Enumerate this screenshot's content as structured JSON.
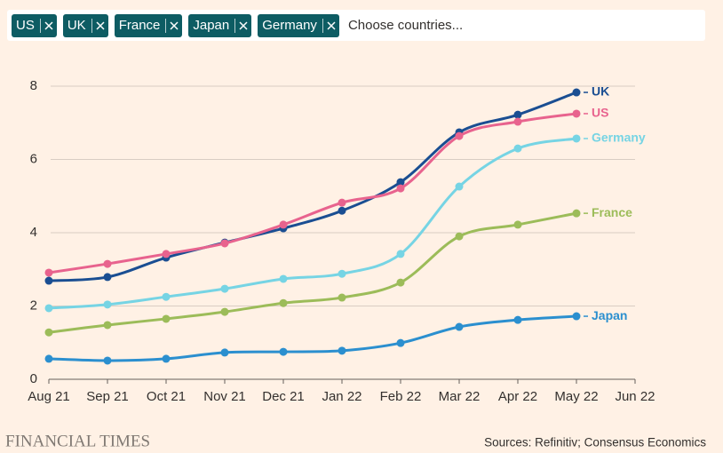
{
  "filter": {
    "chips": [
      "US",
      "UK",
      "France",
      "Japan",
      "Germany"
    ],
    "placeholder": "Choose countries..."
  },
  "chart_data": {
    "type": "line",
    "categories": [
      "Aug 21",
      "Sep 21",
      "Oct 21",
      "Nov 21",
      "Dec 21",
      "Jan 22",
      "Feb 22",
      "Mar 22",
      "Apr 22",
      "May 22",
      "Jun 22"
    ],
    "series": [
      {
        "name": "UK",
        "color": "#1a4e92",
        "values": [
          2.69,
          2.79,
          3.32,
          3.73,
          4.12,
          4.6,
          5.38,
          6.74,
          7.22,
          7.83,
          null
        ]
      },
      {
        "name": "US",
        "color": "#e8638e",
        "values": [
          2.91,
          3.15,
          3.42,
          3.71,
          4.22,
          4.82,
          5.21,
          6.64,
          7.03,
          7.25,
          null
        ]
      },
      {
        "name": "Germany",
        "color": "#76d4e4",
        "values": [
          1.94,
          2.04,
          2.25,
          2.47,
          2.74,
          2.88,
          3.42,
          5.26,
          6.3,
          6.57,
          null
        ]
      },
      {
        "name": "France",
        "color": "#9cbc59",
        "values": [
          1.28,
          1.48,
          1.65,
          1.84,
          2.08,
          2.23,
          2.64,
          3.9,
          4.22,
          4.53,
          null
        ]
      },
      {
        "name": "Japan",
        "color": "#2b8fcf",
        "values": [
          0.56,
          0.51,
          0.56,
          0.73,
          0.75,
          0.78,
          0.99,
          1.43,
          1.62,
          1.72,
          null
        ]
      }
    ],
    "ylim": [
      0,
      8
    ],
    "yticks": [
      0,
      2,
      4,
      6,
      8
    ],
    "grid": true,
    "brand": "FINANCIAL TIMES",
    "source": "Sources: Refinitiv; Consensus Economics"
  }
}
